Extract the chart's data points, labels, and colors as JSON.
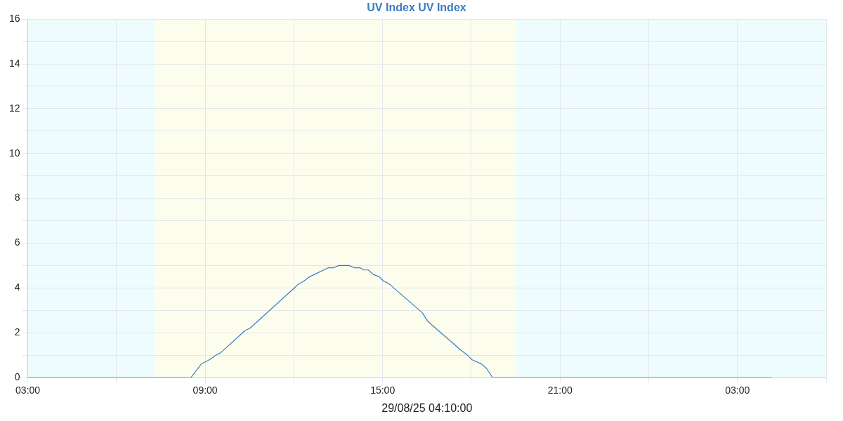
{
  "chart_data": {
    "type": "line",
    "title": "UV Index UV Index",
    "xlabel": "29/08/25 04:10:00",
    "x": [
      "--08-28T03:00",
      "--08-28T08:31",
      "--08-28T08:52",
      "--08-28T09:09",
      "--08-28T09:22",
      "--08-28T09:31",
      "--08-28T10:21",
      "--08-28T10:31",
      "--08-28T12:01",
      "--08-28T12:11",
      "--08-28T12:20",
      "--08-28T12:32",
      "--08-28T13:10",
      "--08-28T13:21",
      "--08-28T13:31",
      "--08-28T13:52",
      "--08-28T14:02",
      "--08-28T14:14",
      "--08-28T14:22",
      "--08-28T14:31",
      "--08-28T14:41",
      "--08-28T14:53",
      "--08-28T15:02",
      "--08-28T15:12",
      "--08-28T16:20",
      "--08-28T16:32",
      "--08-28T17:40",
      "--08-28T17:52",
      "--08-28T18:01",
      "--08-28T18:21",
      "--08-28T18:31",
      "--08-28T18:43",
      "--08-29T04:10"
    ],
    "series": [
      {
        "color": "#3a7dbf",
        "values": [
          0,
          0,
          0.6,
          0.8,
          1.0,
          1.1,
          2.1,
          2.2,
          4.0,
          4.2,
          4.3,
          4.5,
          4.9,
          4.9,
          5.0,
          5.0,
          4.9,
          4.9,
          4.8,
          4.8,
          4.6,
          4.5,
          4.3,
          4.2,
          2.9,
          2.5,
          1.2,
          1.0,
          0.8,
          0.6,
          0.4,
          0,
          0
        ]
      }
    ],
    "xlim": [
      "--08-28T03:00",
      "--08-29T06:00"
    ],
    "xticks": [
      {
        "value": "--08-28T03:00",
        "label": "03:00"
      },
      {
        "value": "--08-28T06:00",
        "label": null
      },
      {
        "value": "--08-28T09:00",
        "label": "09:00"
      },
      {
        "value": "--08-28T12:00",
        "label": null
      },
      {
        "value": "--08-28T15:00",
        "label": "15:00"
      },
      {
        "value": "--08-28T18:00",
        "label": null
      },
      {
        "value": "--08-28T21:00",
        "label": "21:00"
      },
      {
        "value": "--08-29T00:00",
        "label": null
      },
      {
        "value": "--08-29T03:00",
        "label": "03:00"
      },
      {
        "value": "--08-29T06:00",
        "label": null
      }
    ],
    "ylim": [
      0,
      16
    ],
    "yticks": [
      0,
      {
        "value": 1,
        "label": null
      },
      2,
      {
        "value": 3,
        "label": null
      },
      4,
      {
        "value": 5,
        "label": null
      },
      6,
      {
        "value": 7,
        "label": null
      },
      8,
      {
        "value": 9,
        "label": null
      },
      10,
      {
        "value": 11,
        "label": null
      },
      12,
      {
        "value": 13,
        "label": null
      },
      14,
      {
        "value": 15,
        "label": null
      },
      16
    ],
    "bands": [
      {
        "axis": "x",
        "from": "--08-28T03:00",
        "to": "--08-28T07:18",
        "color": "#eefcfd"
      },
      {
        "axis": "x",
        "from": "--08-28T07:18",
        "to": "--08-28T19:30",
        "color": "#fdfdee"
      },
      {
        "axis": "x",
        "from": "--08-28T19:30",
        "to": "--08-29T06:00",
        "color": "#eefcfd"
      }
    ],
    "grid": true,
    "marker": "none",
    "line_style": "solid",
    "legend": false
  }
}
